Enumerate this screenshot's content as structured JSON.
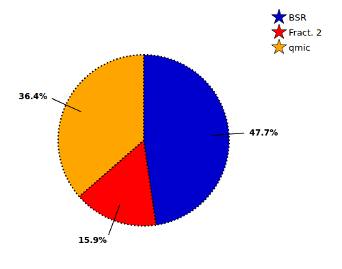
{
  "chart_data": {
    "type": "pie",
    "categories": [
      "BSR",
      "Fract. 2",
      "qmic"
    ],
    "values": [
      47.7,
      15.9,
      36.4
    ],
    "value_labels": [
      "47.7%",
      "15.9%",
      "36.4%"
    ],
    "data_labels": true,
    "colors": [
      "#0000CC",
      "#FF0000",
      "#FFA500"
    ],
    "legend": "upper right"
  }
}
